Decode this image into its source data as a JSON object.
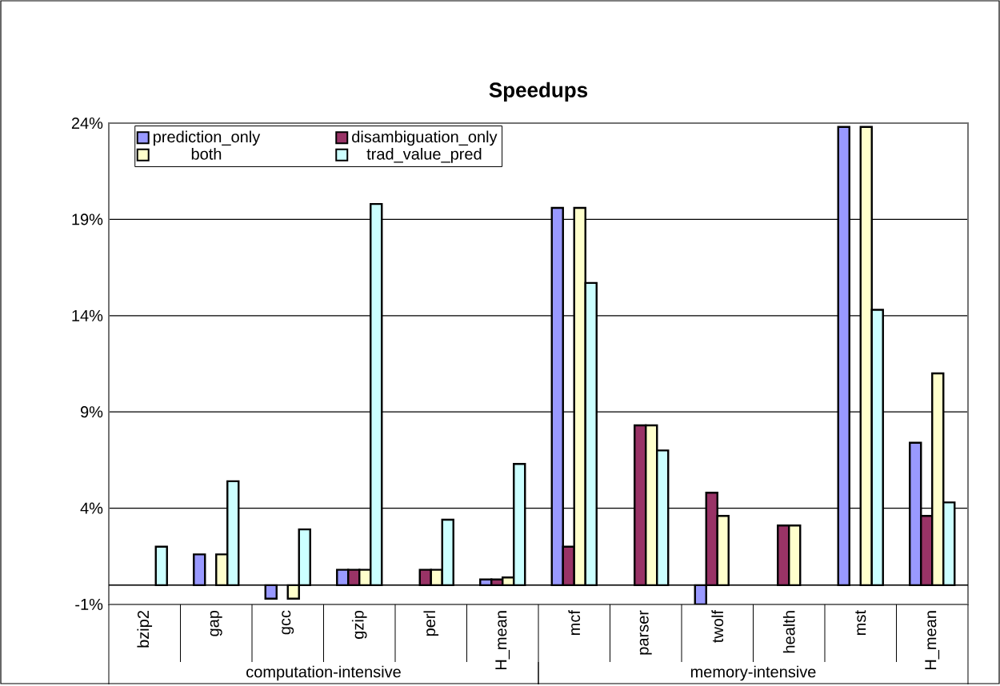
{
  "chart_data": {
    "type": "bar",
    "title": "Speedups",
    "categories": [
      "bzip2",
      "gap",
      "gcc",
      "gzip",
      "perl",
      "H_mean",
      "mcf",
      "parser",
      "twolf",
      "health",
      "mst",
      "H_mean"
    ],
    "series": [
      {
        "name": "prediction_only",
        "color": "#9999ff",
        "values": [
          null,
          1.6,
          -0.7,
          0.8,
          null,
          0.3,
          19.6,
          null,
          -1.0,
          null,
          23.8,
          7.4
        ]
      },
      {
        "name": "disambiguation_only",
        "color": "#993366",
        "values": [
          null,
          null,
          null,
          0.8,
          0.8,
          0.3,
          2.0,
          8.3,
          4.8,
          3.1,
          null,
          3.6
        ]
      },
      {
        "name": "both",
        "color": "#ffffcc",
        "values": [
          null,
          1.6,
          -0.7,
          0.8,
          0.8,
          0.4,
          19.6,
          8.3,
          3.6,
          3.1,
          23.8,
          11.0
        ]
      },
      {
        "name": "trad_value_pred",
        "color": "#ccffff",
        "values": [
          2.0,
          5.4,
          2.9,
          19.8,
          3.4,
          6.3,
          15.7,
          7.0,
          null,
          null,
          14.3,
          4.3
        ]
      }
    ],
    "ylim": [
      -1,
      24
    ],
    "yticks": [
      {
        "value": -1,
        "label": "-1%"
      },
      {
        "value": 4,
        "label": "4%"
      },
      {
        "value": 9,
        "label": "9%"
      },
      {
        "value": 14,
        "label": "14%"
      },
      {
        "value": 19,
        "label": "19%"
      },
      {
        "value": 24,
        "label": "24%"
      }
    ],
    "grid": "y",
    "legend": "top",
    "annotations": [
      "computation-intensive",
      "memory-intensive"
    ]
  }
}
